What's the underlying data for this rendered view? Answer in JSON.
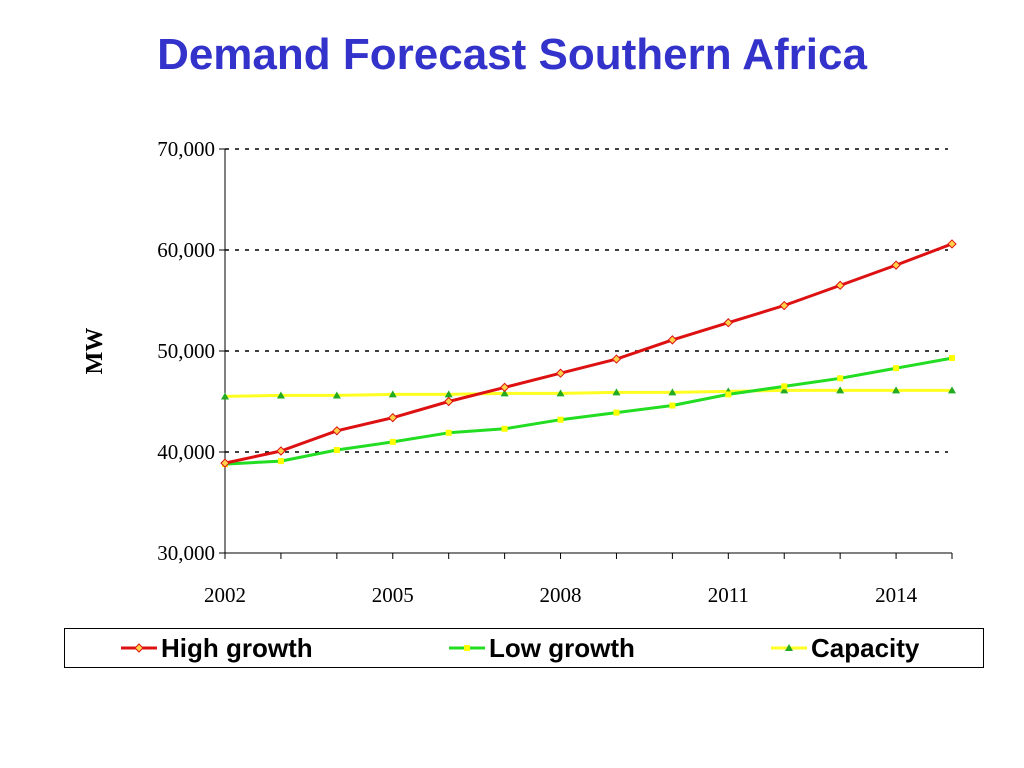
{
  "title": "Demand Forecast Southern Africa",
  "chart_data": {
    "type": "line",
    "ylabel": "MW",
    "xlabel": "",
    "x": [
      2002,
      2003,
      2004,
      2005,
      2006,
      2007,
      2008,
      2009,
      2010,
      2011,
      2012,
      2013,
      2014,
      2015
    ],
    "x_tick_labels": [
      "2002",
      "2005",
      "2008",
      "2011",
      "2014"
    ],
    "y_tick_labels": [
      "30,000",
      "40,000",
      "50,000",
      "60,000",
      "70,000"
    ],
    "ylim": [
      30000,
      70000
    ],
    "grid": "dotted horizontal at major y ticks",
    "legend_position": "bottom",
    "series": [
      {
        "name": "High growth",
        "color": "#dd1111",
        "marker": "diamond",
        "marker_color": "#ffd24a",
        "values": [
          38900,
          40100,
          42100,
          43400,
          45000,
          46400,
          47800,
          49200,
          51100,
          52800,
          54500,
          56500,
          58500,
          60600
        ]
      },
      {
        "name": "Low growth",
        "color": "#22dd22",
        "marker": "square",
        "marker_color": "#ffff00",
        "values": [
          38800,
          39100,
          40200,
          41000,
          41900,
          42300,
          43200,
          43900,
          44600,
          45700,
          46500,
          47300,
          48300,
          49300
        ]
      },
      {
        "name": "Capacity",
        "color": "#ffff22",
        "marker": "triangle",
        "marker_color": "#22aa22",
        "values": [
          45500,
          45600,
          45600,
          45700,
          45700,
          45800,
          45800,
          45900,
          45900,
          46000,
          46100,
          46100,
          46100,
          46100
        ]
      }
    ]
  }
}
